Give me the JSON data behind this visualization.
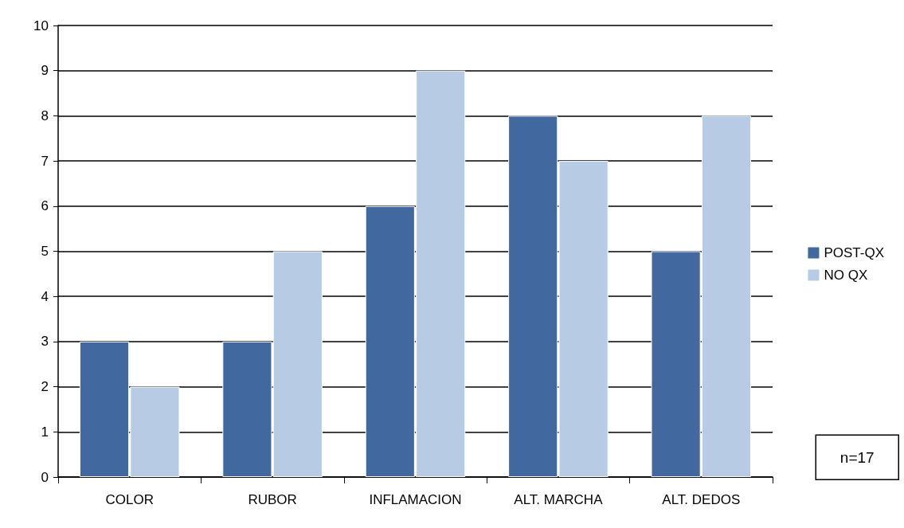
{
  "chart_data": {
    "type": "bar",
    "categories": [
      "COLOR",
      "RUBOR",
      "INFLAMACION",
      "ALT. MARCHA",
      "ALT. DEDOS"
    ],
    "series": [
      {
        "name": "POST-QX",
        "color": "#41699f",
        "values": [
          3,
          3,
          6,
          8,
          5
        ]
      },
      {
        "name": "NO QX",
        "color": "#b7cce4",
        "values": [
          2,
          5,
          9,
          7,
          8
        ]
      }
    ],
    "ylim": [
      0,
      10
    ],
    "yticks": [
      0,
      1,
      2,
      3,
      4,
      5,
      6,
      7,
      8,
      9,
      10
    ],
    "grid": "y",
    "legend": "right",
    "annotations": [
      "n=17"
    ]
  }
}
